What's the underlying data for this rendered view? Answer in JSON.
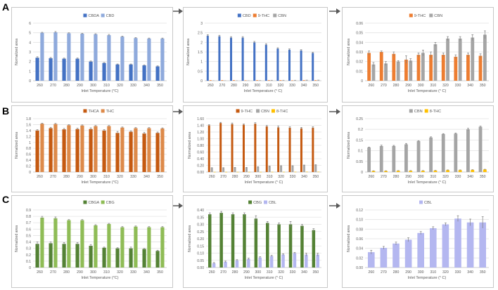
{
  "row_labels": [
    "A",
    "B",
    "C"
  ],
  "colors": {
    "CBDA": "#4472c4",
    "CBD": "#8faadc",
    "CBD_dark": "#4472c4",
    "THC9": "#ed7d31",
    "CBN": "#a5a5a5",
    "THCA": "#c55a11",
    "THC": "#dd8a4a",
    "THC8": "#ffc000",
    "CBGA": "#548235",
    "CBG": "#8fbc56",
    "CBG_dark": "#548235",
    "CBL": "#b4b7f0",
    "error": "#7f7f7f",
    "grid": "#e3e3e3",
    "axis": "#bfbfbf",
    "text": "#595959"
  },
  "chart_data": [
    {
      "id": "A1",
      "type": "bar",
      "xlabel": "Inlet Temperature (°C)",
      "ylabel": "Normalized area",
      "ylim": [
        0,
        6
      ],
      "yticks": [
        "0",
        "1",
        "2",
        "3",
        "4",
        "5",
        "6"
      ],
      "categories": [
        "260",
        "270",
        "280",
        "290",
        "300",
        "310",
        "320",
        "330",
        "340",
        "350"
      ],
      "series": [
        {
          "name": "CBDA",
          "color": "#4472c4",
          "values": [
            2.4,
            2.35,
            2.3,
            2.3,
            2.0,
            1.85,
            1.7,
            1.7,
            1.6,
            1.5
          ],
          "err": [
            0.1,
            0.08,
            0.06,
            0.07,
            0.06,
            0.05,
            0.05,
            0.05,
            0.05,
            0.05
          ]
        },
        {
          "name": "CBD",
          "color": "#8faadc",
          "values": [
            5.0,
            5.05,
            4.95,
            4.9,
            4.85,
            4.75,
            4.6,
            4.45,
            4.4,
            4.4
          ],
          "err": [
            0.05,
            0.08,
            0.05,
            0.05,
            0.05,
            0.08,
            0.05,
            0.05,
            0.05,
            0.05
          ]
        }
      ]
    },
    {
      "id": "A2",
      "type": "bar",
      "xlabel": "Inlet Temperature (° C)",
      "ylabel": "Normalized area",
      "ylim": [
        0,
        3
      ],
      "yticks": [
        "0",
        "0.5",
        "1",
        "1.5",
        "2",
        "2.5",
        "3"
      ],
      "categories": [
        "260",
        "270",
        "280",
        "290",
        "300",
        "310",
        "320",
        "330",
        "340",
        "350"
      ],
      "series": [
        {
          "name": "CBD",
          "color": "#4472c4",
          "values": [
            2.35,
            2.32,
            2.25,
            2.25,
            2.0,
            1.88,
            1.68,
            1.62,
            1.58,
            1.45
          ],
          "err": [
            0.05,
            0.05,
            0.05,
            0.05,
            0.05,
            0.05,
            0.04,
            0.04,
            0.04,
            0.04
          ]
        },
        {
          "name": "9-THC",
          "color": "#ed7d31",
          "values": [
            0.03,
            0.03,
            0.03,
            0.02,
            0.03,
            0.03,
            0.03,
            0.02,
            0.03,
            0.03
          ],
          "err": [
            0,
            0,
            0,
            0,
            0,
            0,
            0,
            0,
            0,
            0
          ]
        },
        {
          "name": "CBN",
          "color": "#a5a5a5",
          "values": [
            0.02,
            0.02,
            0.02,
            0.02,
            0.03,
            0.04,
            0.04,
            0.04,
            0.05,
            0.05
          ],
          "err": [
            0,
            0,
            0,
            0,
            0,
            0,
            0,
            0,
            0,
            0
          ]
        }
      ]
    },
    {
      "id": "A3",
      "type": "bar",
      "xlabel": "Inlet Temperature (° C)",
      "ylabel": "Normalized area",
      "ylim": [
        0,
        0.06
      ],
      "yticks": [
        "0",
        "0.01",
        "0.02",
        "0.03",
        "0.04",
        "0.05",
        "0.06"
      ],
      "categories": [
        "260",
        "270",
        "280",
        "290",
        "300",
        "310",
        "320",
        "330",
        "340",
        "350"
      ],
      "series": [
        {
          "name": "9-THC",
          "color": "#ed7d31",
          "values": [
            0.029,
            0.03,
            0.028,
            0.022,
            0.027,
            0.027,
            0.027,
            0.025,
            0.027,
            0.026
          ],
          "err": [
            0.002,
            0.001,
            0.002,
            0.004,
            0.002,
            0.003,
            0.002,
            0.002,
            0.002,
            0.002
          ]
        },
        {
          "name": "CBN",
          "color": "#a5a5a5",
          "values": [
            0.017,
            0.018,
            0.02,
            0.021,
            0.029,
            0.038,
            0.044,
            0.044,
            0.045,
            0.048
          ],
          "err": [
            0.002,
            0.002,
            0.001,
            0.002,
            0.003,
            0.002,
            0.002,
            0.002,
            0.003,
            0.004
          ]
        }
      ]
    },
    {
      "id": "B1",
      "type": "bar",
      "xlabel": "Inlet Temperature (°C)",
      "ylabel": "Normalized area",
      "ylim": [
        0,
        1.8
      ],
      "yticks": [
        "0",
        "0.2",
        "0.4",
        "0.6",
        "0.8",
        "1",
        "1.2",
        "1.4",
        "1.6",
        "1.8"
      ],
      "categories": [
        "260",
        "270",
        "280",
        "290",
        "300",
        "310",
        "320",
        "330",
        "340",
        "350"
      ],
      "series": [
        {
          "name": "THCA",
          "color": "#c55a11",
          "values": [
            1.4,
            1.48,
            1.44,
            1.45,
            1.45,
            1.4,
            1.32,
            1.36,
            1.3,
            1.32
          ],
          "err": [
            0.03,
            0.03,
            0.03,
            0.03,
            0.04,
            0.03,
            0.05,
            0.03,
            0.04,
            0.03
          ]
        },
        {
          "name": "THC",
          "color": "#dd8a4a",
          "values": [
            1.63,
            1.62,
            1.58,
            1.57,
            1.55,
            1.55,
            1.5,
            1.48,
            1.48,
            1.47
          ],
          "err": [
            0.02,
            0.02,
            0.02,
            0.02,
            0.02,
            0.02,
            0.02,
            0.02,
            0.02,
            0.02
          ]
        }
      ]
    },
    {
      "id": "B2",
      "type": "bar",
      "xlabel": "Inlet Temperature (° C)",
      "ylabel": "Normalized area",
      "ylim": [
        0,
        1.6
      ],
      "yticks": [
        "0.00",
        "0.20",
        "0.40",
        "0.60",
        "0.80",
        "1.00",
        "1.20",
        "1.40",
        "1.60"
      ],
      "categories": [
        "260",
        "270",
        "280",
        "290",
        "300",
        "310",
        "320",
        "330",
        "340",
        "350"
      ],
      "series": [
        {
          "name": "9-THC",
          "color": "#c55a11",
          "values": [
            1.4,
            1.47,
            1.44,
            1.42,
            1.45,
            1.37,
            1.34,
            1.33,
            1.31,
            1.33
          ],
          "err": [
            0.02,
            0.02,
            0.03,
            0.02,
            0.03,
            0.03,
            0.04,
            0.03,
            0.03,
            0.03
          ]
        },
        {
          "name": "CBN",
          "color": "#a5a5a5",
          "values": [
            0.12,
            0.12,
            0.13,
            0.13,
            0.15,
            0.17,
            0.18,
            0.18,
            0.2,
            0.21
          ],
          "err": [
            0.01,
            0.01,
            0.01,
            0.01,
            0.01,
            0.01,
            0.01,
            0.01,
            0.01,
            0.01
          ]
        },
        {
          "name": "8-THC",
          "color": "#ffc000",
          "values": [
            0.005,
            0.005,
            0.005,
            0.005,
            0.005,
            0.006,
            0.007,
            0.008,
            0.01,
            0.01
          ],
          "err": [
            0,
            0,
            0,
            0,
            0,
            0,
            0,
            0,
            0,
            0
          ]
        }
      ]
    },
    {
      "id": "B3",
      "type": "bar",
      "xlabel": "Inlet Temperature (° C)",
      "ylabel": "Normalized area",
      "ylim": [
        0,
        0.25
      ],
      "yticks": [
        "0",
        "0.05",
        "0.1",
        "0.15",
        "0.2",
        "0.25"
      ],
      "categories": [
        "260",
        "270",
        "280",
        "290",
        "300",
        "310",
        "320",
        "330",
        "340",
        "350"
      ],
      "series": [
        {
          "name": "CBN",
          "color": "#a5a5a5",
          "values": [
            0.115,
            0.122,
            0.122,
            0.13,
            0.145,
            0.162,
            0.178,
            0.18,
            0.2,
            0.212
          ],
          "err": [
            0.002,
            0.004,
            0.003,
            0.004,
            0.002,
            0.003,
            0.002,
            0.003,
            0.005,
            0.003
          ]
        },
        {
          "name": "8-THC",
          "color": "#ffc000",
          "values": [
            0.005,
            0.005,
            0.006,
            0.006,
            0.006,
            0.007,
            0.009,
            0.009,
            0.01,
            0.012
          ],
          "err": [
            0.001,
            0.001,
            0.001,
            0.001,
            0.001,
            0.001,
            0.001,
            0.001,
            0.001,
            0.001
          ]
        }
      ]
    },
    {
      "id": "C1",
      "type": "bar",
      "xlabel": "Inlet Temperature (°C)",
      "ylabel": "Normalized area",
      "ylim": [
        0,
        0.9
      ],
      "yticks": [
        "0",
        "0.1",
        "0.2",
        "0.3",
        "0.4",
        "0.5",
        "0.6",
        "0.7",
        "0.8",
        "0.9"
      ],
      "categories": [
        "260",
        "270",
        "280",
        "290",
        "300",
        "310",
        "320",
        "330",
        "340",
        "350"
      ],
      "series": [
        {
          "name": "CBGA",
          "color": "#548235",
          "values": [
            0.37,
            0.38,
            0.37,
            0.37,
            0.34,
            0.31,
            0.3,
            0.3,
            0.29,
            0.26
          ],
          "err": [
            0.03,
            0.02,
            0.02,
            0.02,
            0.02,
            0.01,
            0.01,
            0.02,
            0.01,
            0.01
          ]
        },
        {
          "name": "CBG",
          "color": "#8fbc56",
          "values": [
            0.78,
            0.77,
            0.74,
            0.74,
            0.66,
            0.68,
            0.63,
            0.64,
            0.63,
            0.63
          ],
          "err": [
            0.02,
            0.02,
            0.01,
            0.01,
            0.01,
            0.01,
            0.01,
            0.01,
            0.01,
            0.01
          ]
        }
      ]
    },
    {
      "id": "C2",
      "type": "bar",
      "xlabel": "Inlet Temperature (° C)",
      "ylabel": "Normalized area",
      "ylim": [
        0,
        0.4
      ],
      "yticks": [
        "0.00",
        "0.05",
        "0.10",
        "0.15",
        "0.20",
        "0.25",
        "0.30",
        "0.35",
        "0.40"
      ],
      "categories": [
        "260",
        "270",
        "280",
        "290",
        "300",
        "310",
        "320",
        "330",
        "340",
        "350"
      ],
      "series": [
        {
          "name": "CBG",
          "color": "#548235",
          "values": [
            0.37,
            0.38,
            0.37,
            0.37,
            0.34,
            0.31,
            0.3,
            0.3,
            0.29,
            0.26
          ],
          "err": [
            0.01,
            0.01,
            0.01,
            0.01,
            0.02,
            0.01,
            0.01,
            0.02,
            0.01,
            0.01
          ]
        },
        {
          "name": "CBL",
          "color": "#b4b7f0",
          "values": [
            0.03,
            0.04,
            0.05,
            0.06,
            0.07,
            0.08,
            0.09,
            0.1,
            0.09,
            0.09
          ],
          "err": [
            0.005,
            0.005,
            0.005,
            0.005,
            0.005,
            0.005,
            0.005,
            0.005,
            0.01,
            0.01
          ]
        }
      ]
    },
    {
      "id": "C3",
      "type": "bar",
      "xlabel": "Inlet Temperature (° C)",
      "ylabel": "Normalized area",
      "ylim": [
        0,
        0.12
      ],
      "yticks": [
        "0.00",
        "0.02",
        "0.04",
        "0.06",
        "0.08",
        "0.10",
        "0.12"
      ],
      "categories": [
        "260",
        "270",
        "280",
        "290",
        "300",
        "310",
        "320",
        "330",
        "340",
        "350"
      ],
      "series": [
        {
          "name": "CBL",
          "color": "#b4b7f0",
          "values": [
            0.032,
            0.041,
            0.05,
            0.058,
            0.072,
            0.082,
            0.09,
            0.102,
            0.094,
            0.094
          ],
          "err": [
            0.004,
            0.003,
            0.003,
            0.004,
            0.003,
            0.003,
            0.003,
            0.006,
            0.007,
            0.012
          ]
        }
      ]
    }
  ]
}
